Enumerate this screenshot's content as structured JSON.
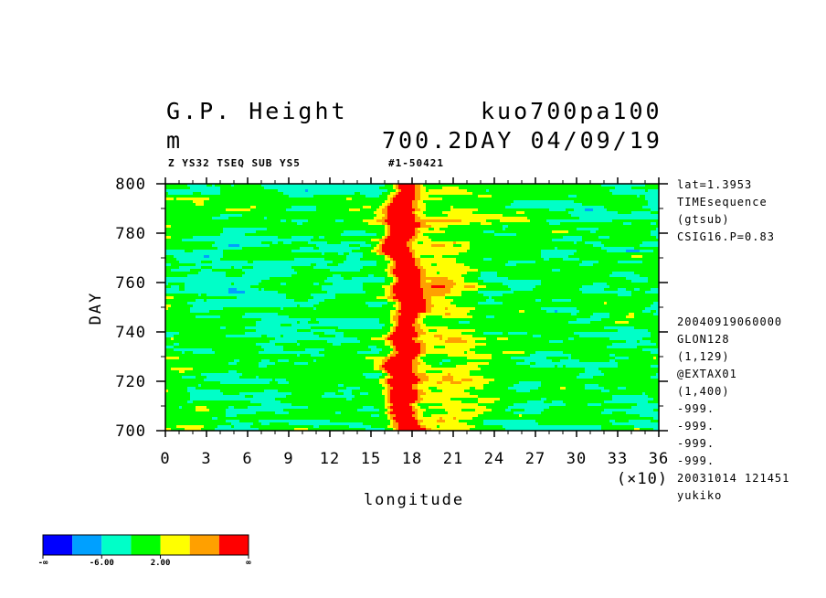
{
  "header": {
    "title_left": "G.P. Height",
    "title_right": "kuo700pa100",
    "unit": "m",
    "subtitle_right": "700.2DAY 04/09/19",
    "small_left": "Z YS32 TSEQ SUB YS5",
    "small_right": "#1-50421"
  },
  "side_info": {
    "top": [
      "lat=1.3953",
      "TIMEsequence",
      "(gtsub)",
      "CSIG16.P=0.83"
    ],
    "bottom": [
      "20040919060000",
      "GLON128",
      "(1,129)",
      "@EXTAX01",
      "(1,400)",
      "-999.",
      "-999.",
      "-999.",
      "-999.",
      "20031014 121451",
      "yukiko"
    ]
  },
  "colorbar": {
    "colors": [
      "#0000ff",
      "#00a0ff",
      "#00ffc8",
      "#00ff00",
      "#ffff00",
      "#ffa000",
      "#ff0000"
    ],
    "labels": [
      "-∞",
      "-6.00",
      "2.00",
      "∞"
    ]
  },
  "chart_data": {
    "type": "heatmap",
    "title": "G.P. Height",
    "xlabel": "longitude",
    "ylabel": "DAY",
    "x_multiplier": "(×10)",
    "xlim": [
      0,
      36
    ],
    "ylim": [
      700,
      800
    ],
    "x_ticks": [
      "0",
      "3",
      "6",
      "9",
      "12",
      "15",
      "18",
      "21",
      "24",
      "27",
      "30",
      "33",
      "36"
    ],
    "y_ticks": [
      "700",
      "720",
      "740",
      "760",
      "780",
      "800"
    ],
    "levels": [
      "-∞",
      "-6.00",
      "2.00",
      "∞"
    ],
    "ridge_center_longitude": 18,
    "ridge_days": [
      700,
      800
    ],
    "background_value_range": "green/cyan (around 0)",
    "ridge_value": "red (maximum)"
  }
}
